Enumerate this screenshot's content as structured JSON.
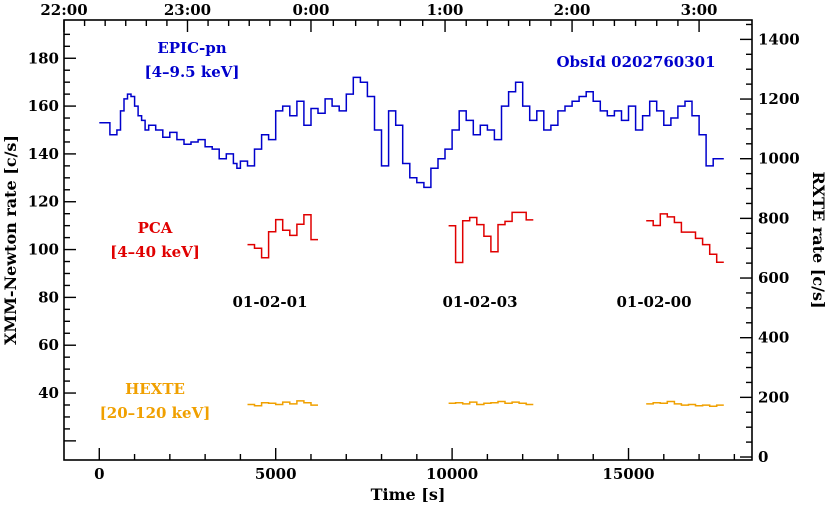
{
  "chart_data": {
    "type": "line",
    "xlabel": "Time [s]",
    "ylabel_left": "XMM-Newton rate [c/s]",
    "ylabel_right": "RXTE rate [c/s]",
    "xlim": [
      -1000,
      18500
    ],
    "ylim_left": [
      12,
      196
    ],
    "ylim_right": [
      -10,
      1465
    ],
    "x_ticks": [
      {
        "v": 0,
        "label": "0"
      },
      {
        "v": 5000,
        "label": "5000"
      },
      {
        "v": 10000,
        "label": "10000"
      },
      {
        "v": 15000,
        "label": "15000"
      }
    ],
    "y_left_ticks": [
      {
        "v": 40,
        "label": "40"
      },
      {
        "v": 60,
        "label": "60"
      },
      {
        "v": 80,
        "label": "80"
      },
      {
        "v": 100,
        "label": "100"
      },
      {
        "v": 120,
        "label": "120"
      },
      {
        "v": 140,
        "label": "140"
      },
      {
        "v": 160,
        "label": "160"
      },
      {
        "v": 180,
        "label": "180"
      }
    ],
    "y_right_ticks": [
      {
        "v": 0,
        "label": "0"
      },
      {
        "v": 200,
        "label": "200"
      },
      {
        "v": 400,
        "label": "400"
      },
      {
        "v": 600,
        "label": "600"
      },
      {
        "v": 800,
        "label": "800"
      },
      {
        "v": 1000,
        "label": "1000"
      },
      {
        "v": 1200,
        "label": "1200"
      },
      {
        "v": 1400,
        "label": "1400"
      }
    ],
    "top_ticks": [
      {
        "v": -1000,
        "label": "22:00"
      },
      {
        "v": 2500,
        "label": "23:00"
      },
      {
        "v": 6000,
        "label": "0:00"
      },
      {
        "v": 9800,
        "label": "1:00"
      },
      {
        "v": 13400,
        "label": "2:00"
      },
      {
        "v": 17000,
        "label": "3:00"
      }
    ],
    "obsid_label": "ObsId 0202760301",
    "colors": {
      "epic": "#0000cc",
      "pca": "#e00000",
      "hexte": "#f0a000",
      "axis": "#000000"
    },
    "series": [
      {
        "name": "EPIC-pn",
        "band": "[4–9.5 keV]",
        "axis": "left",
        "color": "#0000cc",
        "x": [
          0,
          300,
          500,
          600,
          700,
          800,
          900,
          1000,
          1100,
          1200,
          1300,
          1400,
          1600,
          1800,
          2000,
          2200,
          2400,
          2600,
          2800,
          3000,
          3200,
          3400,
          3600,
          3800,
          3900,
          4000,
          4200,
          4400,
          4600,
          4800,
          5000,
          5200,
          5400,
          5600,
          5800,
          6000,
          6200,
          6400,
          6600,
          6800,
          7000,
          7200,
          7400,
          7600,
          7800,
          8000,
          8200,
          8400,
          8600,
          8800,
          9000,
          9200,
          9400,
          9600,
          9800,
          10000,
          10200,
          10400,
          10600,
          10800,
          11000,
          11200,
          11400,
          11600,
          11800,
          12000,
          12200,
          12400,
          12600,
          12800,
          13000,
          13200,
          13400,
          13600,
          13800,
          14000,
          14200,
          14400,
          14600,
          14800,
          15000,
          15200,
          15400,
          15600,
          15800,
          16000,
          16200,
          16400,
          16600,
          16800,
          17000,
          17200,
          17400
        ],
        "y": [
          153,
          148,
          150,
          158,
          163,
          165,
          164,
          160,
          156,
          154,
          150,
          152,
          150,
          147,
          149,
          146,
          144,
          145,
          146,
          143,
          142,
          138,
          140,
          136,
          134,
          137,
          135,
          142,
          148,
          146,
          158,
          160,
          156,
          162,
          152,
          159,
          157,
          163,
          160,
          158,
          165,
          172,
          170,
          164,
          150,
          135,
          158,
          152,
          136,
          130,
          128,
          126,
          134,
          138,
          142,
          150,
          158,
          154,
          148,
          152,
          150,
          146,
          160,
          166,
          170,
          160,
          154,
          158,
          150,
          152,
          158,
          160,
          162,
          164,
          166,
          162,
          158,
          156,
          158,
          154,
          160,
          150,
          156,
          162,
          158,
          152,
          155,
          160,
          162,
          156,
          148,
          135,
          138
        ]
      },
      {
        "name": "PCA",
        "band": "[4–40 keV]",
        "axis": "right",
        "color": "#e00000",
        "segment_label": "01-02-01",
        "segments": [
          {
            "label": "01-02-01",
            "x": [
              4200,
              4400,
              4600,
              4800,
              5000,
              5200,
              5400,
              5600,
              5800,
              6000
            ],
            "y": [
              712,
              700,
              668,
              755,
              796,
              760,
              743,
              780,
              812,
              729
            ]
          },
          {
            "label": "01-02-03",
            "x": [
              9900,
              10100,
              10300,
              10500,
              10700,
              10900,
              11100,
              11300,
              11500,
              11700,
              11900,
              12100
            ],
            "y": [
              775,
              652,
              792,
              803,
              779,
              740,
              688,
              779,
              790,
              820,
              820,
              795
            ]
          },
          {
            "label": "01-02-00",
            "x": [
              15500,
              15700,
              15900,
              16100,
              16300,
              16500,
              16700,
              16900,
              17100,
              17300,
              17500
            ],
            "y": [
              792,
              776,
              815,
              805,
              786,
              754,
              754,
              733,
              712,
              680,
              653
            ]
          }
        ]
      },
      {
        "name": "HEXTE",
        "band": "[20–120 keV]",
        "axis": "right",
        "color": "#f0a000",
        "segments": [
          {
            "x": [
              4200,
              4400,
              4600,
              4800,
              5000,
              5200,
              5400,
              5600,
              5800,
              6000
            ],
            "y": [
              176,
              172,
              182,
              180,
              176,
              184,
              178,
              188,
              182,
              174
            ]
          },
          {
            "x": [
              9900,
              10100,
              10300,
              10500,
              10700,
              10900,
              11100,
              11300,
              11500,
              11700,
              11900,
              12100
            ],
            "y": [
              180,
              182,
              178,
              184,
              176,
              180,
              182,
              186,
              180,
              184,
              180,
              176
            ]
          },
          {
            "x": [
              15500,
              15700,
              15900,
              16100,
              16300,
              16500,
              16700,
              16900,
              17100,
              17300,
              17500
            ],
            "y": [
              178,
              182,
              180,
              186,
              178,
              174,
              176,
              172,
              174,
              170,
              174
            ]
          }
        ]
      }
    ],
    "segment_labels": [
      "01-02-01",
      "01-02-03",
      "01-02-00"
    ]
  }
}
